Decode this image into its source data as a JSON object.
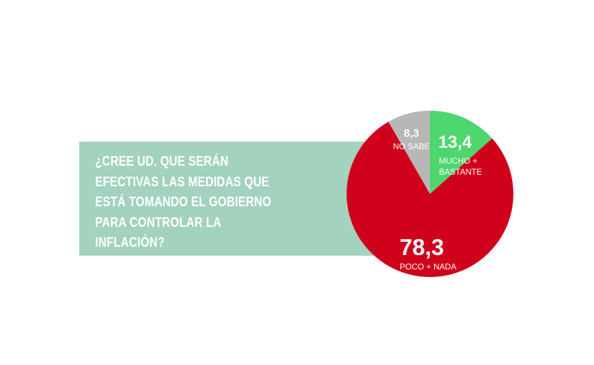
{
  "question": {
    "text": "¿CREE UD. QUE SERÁN\nEFECTIVAS LAS MEDIDAS QUE\nESTÁ TOMANDO EL GOBIERNO\nPARA CONTROLAR LA\nINFLACIÓN?"
  },
  "chart_data": {
    "type": "pie",
    "title": "",
    "slices": [
      {
        "value": "13,4",
        "number": 13.4,
        "label_lines": [
          "MUCHO +",
          "BASTANTE"
        ],
        "color": "#4ed66f"
      },
      {
        "value": "78,3",
        "number": 78.3,
        "label_lines": [
          "POCO + NADA"
        ],
        "color": "#d0021b"
      },
      {
        "value": "8,3",
        "number": 8.3,
        "label_lines": [
          "NO SABE"
        ],
        "color": "#b7b7b7"
      }
    ],
    "start": "12 o'clock",
    "direction": "clockwise",
    "legend": "none"
  }
}
